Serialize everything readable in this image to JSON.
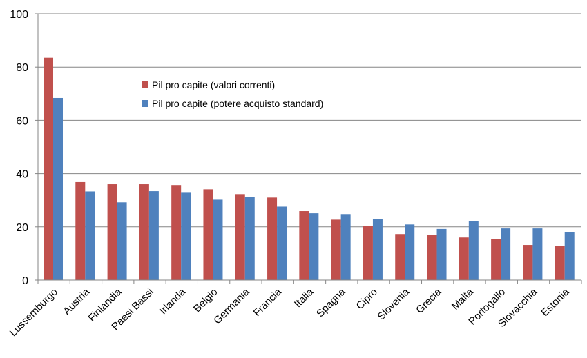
{
  "chart_data": {
    "type": "bar",
    "title": "",
    "xlabel": "",
    "ylabel": "",
    "ylim": [
      0,
      100
    ],
    "yticks": [
      0,
      20,
      40,
      60,
      80,
      100
    ],
    "grid": true,
    "legend_position": "inside-upper-left",
    "categories": [
      "Lussemburgo",
      "Austria",
      "Finlandia",
      "Paesi Bassi",
      "Irlanda",
      "Belgio",
      "Germania",
      "Francia",
      "Italia",
      "Spagna",
      "Cipro",
      "Slovenia",
      "Grecia",
      "Malta",
      "Portogallo",
      "Slovacchia",
      "Estonia"
    ],
    "series": [
      {
        "name": "Pil pro capite (valori correnti)",
        "color": "#c0504d",
        "values": [
          83.5,
          36.8,
          36.0,
          36.0,
          35.7,
          34.1,
          32.3,
          31.0,
          25.9,
          22.7,
          20.4,
          17.3,
          17.0,
          16.0,
          15.5,
          13.2,
          12.8
        ]
      },
      {
        "name": "Pil pro capite (potere acquisto standard)",
        "color": "#4f81bd",
        "values": [
          68.4,
          33.3,
          29.2,
          33.4,
          32.8,
          30.2,
          31.2,
          27.6,
          25.1,
          24.8,
          23.0,
          20.9,
          19.2,
          22.2,
          19.4,
          19.4,
          17.9
        ]
      }
    ]
  }
}
